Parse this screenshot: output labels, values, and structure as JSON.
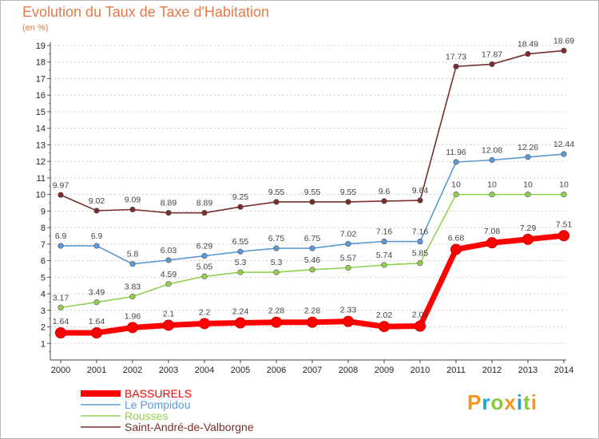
{
  "chart_data": {
    "type": "line",
    "title": "Evolution du Taux de Taxe d'Habitation",
    "subtitle": "(en %)",
    "xlabel": "",
    "ylabel": "",
    "ylim": [
      0,
      19
    ],
    "y_ticks": [
      1,
      2,
      3,
      4,
      5,
      6,
      7,
      8,
      9,
      10,
      11,
      12,
      13,
      14,
      15,
      16,
      17,
      18,
      19
    ],
    "grid": "horizontal dotted",
    "legend_position": "bottom-left",
    "x": [
      "2000",
      "2001",
      "2002",
      "2003",
      "2004",
      "2005",
      "2006",
      "2007",
      "2008",
      "2009",
      "2010",
      "2011",
      "2012",
      "2013",
      "2014"
    ],
    "series": [
      {
        "name": "BASSURELS",
        "color": "#ff0000",
        "values": [
          1.64,
          1.64,
          1.96,
          2.1,
          2.2,
          2.24,
          2.28,
          2.28,
          2.33,
          2.02,
          2.05,
          6.68,
          7.08,
          7.29,
          7.51
        ],
        "labels": [
          "1.64",
          "1.64",
          "1.96",
          "2.1",
          "2.2",
          "2.24",
          "2.28",
          "2.28",
          "2.33",
          "2.02",
          "2.05",
          "6.68",
          "7.08",
          "7.29",
          "7.51"
        ]
      },
      {
        "name": "Le Pompidou",
        "color": "#5b9bd5",
        "values": [
          6.9,
          6.9,
          5.8,
          6.03,
          6.29,
          6.55,
          6.75,
          6.75,
          7.02,
          7.16,
          7.16,
          11.96,
          12.08,
          12.26,
          12.44
        ],
        "labels": [
          "6.9",
          "6.9",
          "5.8",
          "6.03",
          "6.29",
          "6.55",
          "6.75",
          "6.75",
          "7.02",
          "7.16",
          "7.16",
          "11.96",
          "12.08",
          "12.26",
          "12.44"
        ]
      },
      {
        "name": "Rousses",
        "color": "#92d050",
        "values": [
          3.17,
          3.49,
          3.83,
          4.59,
          5.05,
          5.3,
          5.3,
          5.46,
          5.57,
          5.74,
          5.85,
          10,
          10,
          10,
          10
        ],
        "labels": [
          "3.17",
          "3.49",
          "3.83",
          "4.59",
          "5.05",
          "5.3",
          "5.3",
          "5.46",
          "5.57",
          "5.74",
          "5.85",
          "10",
          "10",
          "10",
          "10"
        ]
      },
      {
        "name": "Saint-André-de-Valborgne",
        "color": "#7b2c2c",
        "values": [
          9.97,
          9.02,
          9.09,
          8.89,
          8.89,
          9.25,
          9.55,
          9.55,
          9.55,
          9.6,
          9.64,
          17.73,
          17.87,
          18.49,
          18.69
        ],
        "labels": [
          "9.97",
          "9.02",
          "9.09",
          "8.89",
          "8.89",
          "9.25",
          "9.55",
          "9.55",
          "9.55",
          "9.6",
          "9.64",
          "17.73",
          "17.87",
          "18.49",
          "18.69"
        ]
      }
    ]
  },
  "brand": {
    "text": "Proxiti",
    "colors": [
      "#f7941d",
      "#1aa1d6",
      "#8dc63f",
      "#f7941d",
      "#1aa1d6",
      "#8dc63f",
      "#f7941d"
    ]
  }
}
